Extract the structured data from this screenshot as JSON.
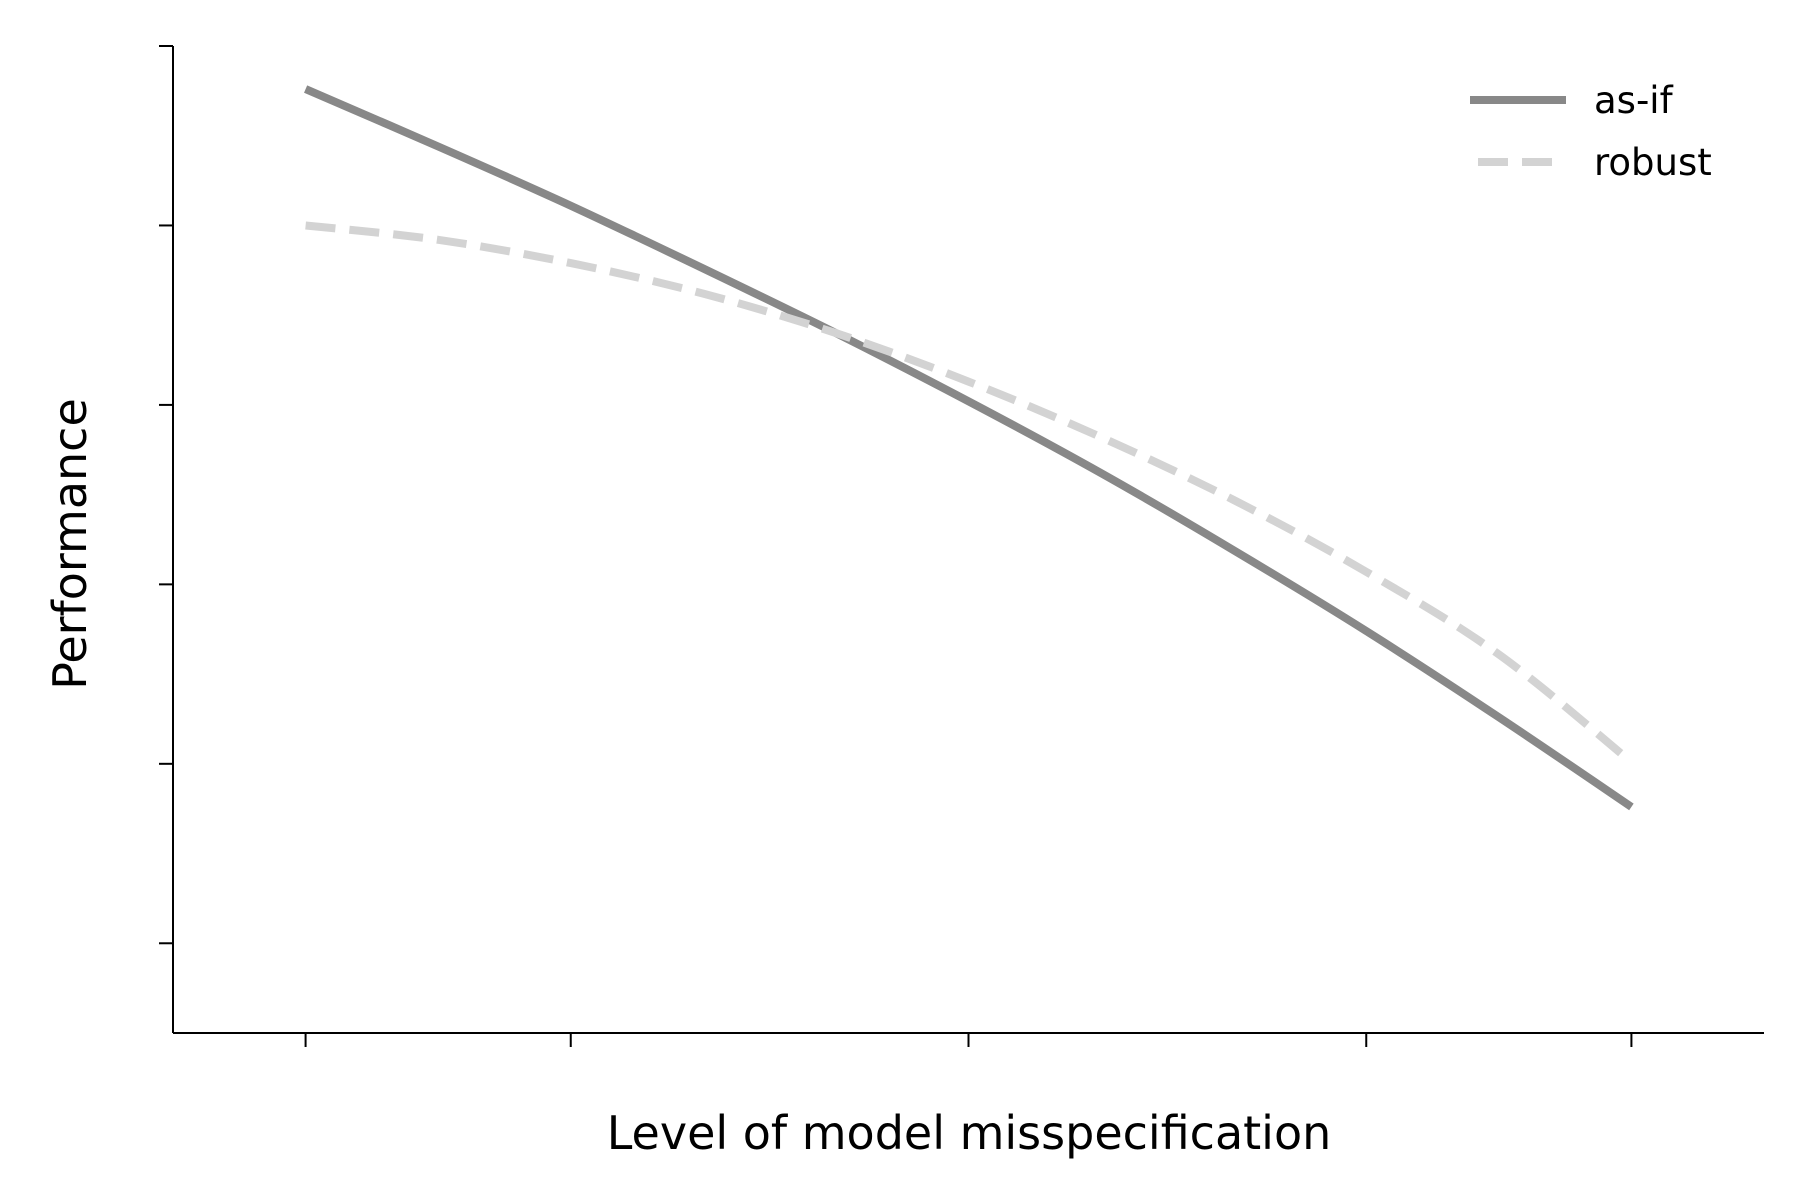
{
  "chart_data": {
    "type": "line",
    "title": "",
    "xlabel": "Level of model misspecification",
    "ylabel": "Performance",
    "x_ticks": [
      0,
      0.2,
      0.5,
      0.8,
      1.0
    ],
    "y_ticks": [
      0,
      1,
      2,
      3,
      4,
      5
    ],
    "xlim": [
      -0.1,
      1.1
    ],
    "ylim": [
      -0.5,
      5
    ],
    "tick_labels_shown": false,
    "grid": false,
    "legend": {
      "placement": "top-right"
    },
    "series": [
      {
        "name": "as-if",
        "style": "solid",
        "color": "#888888",
        "x": [
          0,
          0.1,
          0.2,
          0.3,
          0.4,
          0.5,
          0.6,
          0.7,
          0.8,
          0.9,
          1.0
        ],
        "y": [
          4.76,
          4.44,
          4.11,
          3.76,
          3.4,
          3.02,
          2.62,
          2.19,
          1.74,
          1.26,
          0.76
        ]
      },
      {
        "name": "robust",
        "style": "dashed",
        "color": "#d3d3d3",
        "x": [
          0,
          0.1,
          0.2,
          0.3,
          0.4,
          0.5,
          0.6,
          0.7,
          0.8,
          0.9,
          1.0
        ],
        "y": [
          4.0,
          3.92,
          3.79,
          3.62,
          3.4,
          3.13,
          2.82,
          2.47,
          2.07,
          1.61,
          1.01
        ]
      }
    ]
  }
}
